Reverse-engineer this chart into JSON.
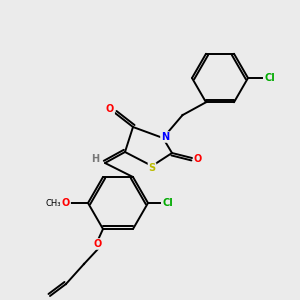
{
  "background_color": "#ebebeb",
  "bond_color": "#000000",
  "atom_colors": {
    "O": "#ff0000",
    "N": "#0000ff",
    "S": "#bbbb00",
    "Cl": "#00aa00",
    "H": "#777777",
    "C": "#000000"
  }
}
